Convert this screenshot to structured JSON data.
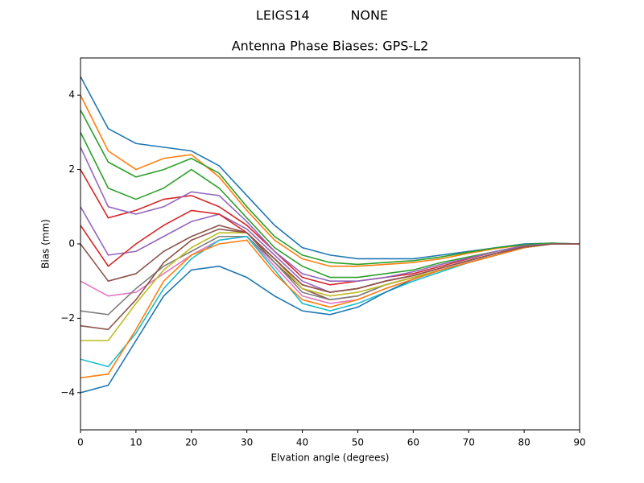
{
  "chart_data": {
    "type": "line",
    "suptitle": "LEIGS14          NONE",
    "title": "Antenna Phase Biases: GPS-L2",
    "x_label": "Elvation angle (degrees)",
    "y_label": "Bias (mm)",
    "x": [
      0,
      5,
      10,
      15,
      20,
      25,
      30,
      35,
      40,
      45,
      50,
      55,
      60,
      65,
      70,
      75,
      80,
      85,
      90
    ],
    "xlim": [
      0,
      90
    ],
    "xticks": [
      0,
      10,
      20,
      30,
      40,
      50,
      60,
      70,
      80,
      90
    ],
    "ylim": [
      -5,
      5
    ],
    "yticks": [
      {
        "value": -4,
        "label": "−4"
      },
      {
        "value": -2,
        "label": "−2"
      },
      0,
      2,
      4
    ],
    "series": [
      {
        "color": "#1f77b4",
        "values": [
          4.5,
          3.1,
          2.7,
          2.6,
          2.5,
          2.1,
          1.3,
          0.5,
          -0.1,
          -0.3,
          -0.4,
          -0.4,
          -0.4,
          -0.3,
          -0.2,
          -0.1,
          0,
          0.02,
          0
        ]
      },
      {
        "color": "#ff7f0e",
        "values": [
          4.0,
          2.5,
          2.0,
          2.3,
          2.4,
          1.8,
          0.9,
          0.1,
          -0.4,
          -0.6,
          -0.6,
          -0.55,
          -0.5,
          -0.4,
          -0.25,
          -0.12,
          -0.03,
          0,
          0
        ]
      },
      {
        "color": "#2ca02c",
        "values": [
          3.0,
          1.5,
          1.2,
          1.5,
          2.0,
          1.5,
          0.7,
          -0.1,
          -0.6,
          -0.9,
          -0.9,
          -0.8,
          -0.7,
          -0.5,
          -0.35,
          -0.2,
          -0.05,
          0,
          0
        ]
      },
      {
        "color": "#d62728",
        "values": [
          2.0,
          0.7,
          0.9,
          1.2,
          1.3,
          1.0,
          0.5,
          -0.2,
          -0.9,
          -1.1,
          -1.0,
          -0.9,
          -0.8,
          -0.6,
          -0.4,
          -0.2,
          -0.05,
          0,
          0
        ]
      },
      {
        "color": "#9467bd",
        "values": [
          1.0,
          -0.3,
          -0.2,
          0.2,
          0.6,
          0.8,
          0.4,
          -0.3,
          -1.0,
          -1.3,
          -1.2,
          -1.0,
          -0.85,
          -0.65,
          -0.45,
          -0.25,
          -0.08,
          0,
          0
        ]
      },
      {
        "color": "#8c564b",
        "values": [
          0,
          -1.0,
          -0.8,
          -0.2,
          0.2,
          0.5,
          0.3,
          -0.5,
          -1.2,
          -1.5,
          -1.4,
          -1.1,
          -0.9,
          -0.7,
          -0.5,
          -0.3,
          -0.1,
          0,
          0
        ]
      },
      {
        "color": "#e377c2",
        "values": [
          -1.0,
          -1.4,
          -1.3,
          -0.8,
          -0.3,
          0.1,
          0.2,
          -0.6,
          -1.4,
          -1.6,
          -1.5,
          -1.2,
          -0.95,
          -0.7,
          -0.5,
          -0.3,
          -0.1,
          0,
          0
        ]
      },
      {
        "color": "#7f7f7f",
        "values": [
          -1.8,
          -1.9,
          -1.2,
          -0.6,
          -0.2,
          0.2,
          0.2,
          -0.5,
          -1.3,
          -1.5,
          -1.4,
          -1.1,
          -0.9,
          -0.7,
          -0.5,
          -0.3,
          -0.1,
          0,
          0
        ]
      },
      {
        "color": "#bcbd22",
        "values": [
          -2.6,
          -2.6,
          -1.6,
          -0.7,
          -0.1,
          0.3,
          0.3,
          -0.4,
          -1.2,
          -1.4,
          -1.3,
          -1.1,
          -0.9,
          -0.7,
          -0.5,
          -0.3,
          -0.1,
          0,
          0
        ]
      },
      {
        "color": "#17becf",
        "values": [
          -3.1,
          -3.3,
          -2.4,
          -1.2,
          -0.4,
          0.1,
          0.2,
          -0.7,
          -1.6,
          -1.8,
          -1.6,
          -1.3,
          -1.0,
          -0.75,
          -0.5,
          -0.3,
          -0.1,
          0,
          0
        ]
      },
      {
        "color": "#1f77b4",
        "values": [
          -4.0,
          -3.8,
          -2.6,
          -1.4,
          -0.7,
          -0.6,
          -0.9,
          -1.4,
          -1.8,
          -1.9,
          -1.7,
          -1.3,
          -0.95,
          -0.7,
          -0.5,
          -0.3,
          -0.1,
          0,
          0
        ]
      },
      {
        "color": "#ff7f0e",
        "values": [
          -3.6,
          -3.5,
          -2.3,
          -1.0,
          -0.3,
          0.0,
          0.1,
          -0.8,
          -1.5,
          -1.7,
          -1.5,
          -1.2,
          -0.95,
          -0.7,
          -0.5,
          -0.3,
          -0.1,
          0,
          0
        ]
      },
      {
        "color": "#2ca02c",
        "values": [
          3.6,
          2.2,
          1.8,
          2.0,
          2.3,
          1.9,
          1.0,
          0.2,
          -0.3,
          -0.5,
          -0.55,
          -0.5,
          -0.45,
          -0.35,
          -0.22,
          -0.1,
          -0.02,
          0.02,
          0
        ]
      },
      {
        "color": "#d62728",
        "values": [
          0.5,
          -0.6,
          0.0,
          0.5,
          0.9,
          0.8,
          0.3,
          -0.4,
          -1.1,
          -1.3,
          -1.2,
          -1.0,
          -0.85,
          -0.65,
          -0.45,
          -0.25,
          -0.08,
          0,
          0
        ]
      },
      {
        "color": "#9467bd",
        "values": [
          2.6,
          1.0,
          0.8,
          1.0,
          1.4,
          1.3,
          0.6,
          -0.2,
          -0.8,
          -1.0,
          -1.0,
          -0.9,
          -0.75,
          -0.55,
          -0.38,
          -0.2,
          -0.05,
          0,
          0
        ]
      },
      {
        "color": "#8c564b",
        "values": [
          -2.2,
          -2.3,
          -1.5,
          -0.5,
          0.1,
          0.4,
          0.3,
          -0.4,
          -1.1,
          -1.3,
          -1.2,
          -1.0,
          -0.85,
          -0.65,
          -0.45,
          -0.25,
          -0.08,
          0,
          0
        ]
      }
    ]
  }
}
